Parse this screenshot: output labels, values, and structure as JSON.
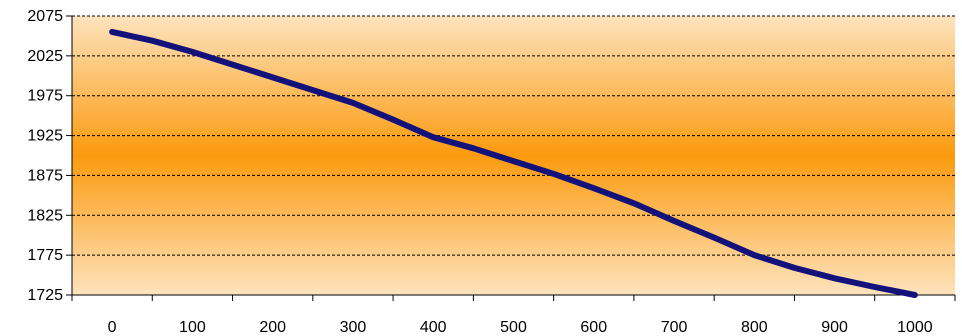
{
  "chart_data": {
    "type": "line",
    "title": "",
    "xlabel": "",
    "ylabel": "",
    "xlim": [
      -50,
      1050
    ],
    "ylim": [
      1725,
      2075
    ],
    "xticks": [
      0,
      100,
      200,
      300,
      400,
      500,
      600,
      700,
      800,
      900,
      1000
    ],
    "yticks": [
      1725,
      1775,
      1825,
      1875,
      1925,
      1975,
      2025,
      2075
    ],
    "x_tick_labels": [
      "0",
      "100",
      "200",
      "300",
      "400",
      "500",
      "600",
      "700",
      "800",
      "900",
      "1000"
    ],
    "y_tick_labels": [
      "1725",
      "1775",
      "1825",
      "1875",
      "1925",
      "1975",
      "2025",
      "2075"
    ],
    "grid": "horizontal dashed",
    "legend": "none",
    "series": [
      {
        "x": [
          0,
          50,
          100,
          150,
          200,
          250,
          300,
          350,
          400,
          450,
          500,
          550,
          600,
          650,
          700,
          750,
          800,
          850,
          900,
          950,
          1000
        ],
        "y": [
          2055,
          2044,
          2030,
          2014,
          1998,
          1982,
          1966,
          1945,
          1923,
          1909,
          1893,
          1877,
          1859,
          1840,
          1818,
          1797,
          1775,
          1759,
          1746,
          1735,
          1725
        ],
        "color": "#13117a"
      }
    ],
    "colors": {
      "band_edge": "#fde3bd",
      "band_center": "#fb9a0e",
      "line": "#13117a",
      "grid": "#000000"
    }
  }
}
